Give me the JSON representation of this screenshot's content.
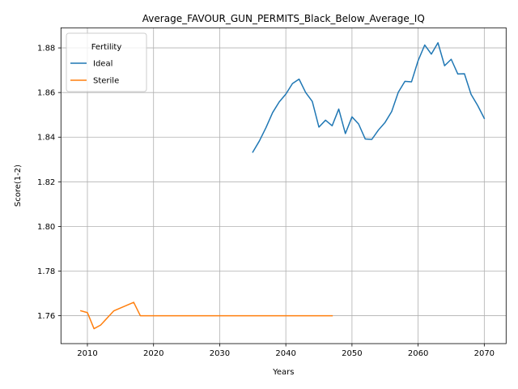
{
  "chart_data": {
    "type": "line",
    "title": "Average_FAVOUR_GUN_PERMITS_Black_Below_Average_IQ",
    "xlabel": "Years",
    "ylabel": "Score(1-2)",
    "xlim": [
      2006,
      2073.3
    ],
    "ylim": [
      1.7475,
      1.889
    ],
    "xticks": [
      2010,
      2020,
      2030,
      2040,
      2050,
      2060,
      2070
    ],
    "xtick_labels": [
      "2010",
      "2020",
      "2030",
      "2040",
      "2050",
      "2060",
      "2070"
    ],
    "yticks": [
      1.76,
      1.78,
      1.8,
      1.82,
      1.84,
      1.86,
      1.88
    ],
    "ytick_labels": [
      "1.76",
      "1.78",
      "1.80",
      "1.82",
      "1.84",
      "1.86",
      "1.88"
    ],
    "grid": true,
    "legend": {
      "title": "Fertility",
      "placement": "upper-left"
    },
    "series": [
      {
        "name": "Ideal",
        "color": "#1f77b4",
        "x": [
          2035,
          2036,
          2037,
          2038,
          2039,
          2040,
          2041,
          2042,
          2043,
          2044,
          2045,
          2046,
          2047,
          2048,
          2049,
          2050,
          2051,
          2052,
          2053,
          2054,
          2055,
          2056,
          2057,
          2058,
          2059,
          2060,
          2061,
          2062,
          2063,
          2064,
          2065,
          2066,
          2067,
          2068,
          2069,
          2070
        ],
        "y": [
          1.8333,
          1.8383,
          1.8443,
          1.851,
          1.8558,
          1.8593,
          1.864,
          1.866,
          1.86,
          1.856,
          1.8445,
          1.8476,
          1.8451,
          1.8526,
          1.8416,
          1.8491,
          1.8459,
          1.8392,
          1.839,
          1.8432,
          1.8466,
          1.8515,
          1.8601,
          1.865,
          1.8648,
          1.8743,
          1.8813,
          1.8772,
          1.8823,
          1.872,
          1.8749,
          1.8683,
          1.8684,
          1.8592,
          1.8542,
          1.8484
        ]
      },
      {
        "name": "Sterile",
        "color": "#ff7f0e",
        "x": [
          2009,
          2010,
          2011,
          2012,
          2014,
          2017,
          2018,
          2020,
          2030,
          2040,
          2047
        ],
        "y": [
          1.7622,
          1.7614,
          1.7542,
          1.7558,
          1.7622,
          1.766,
          1.76,
          1.76,
          1.76,
          1.76,
          1.76
        ]
      }
    ]
  }
}
